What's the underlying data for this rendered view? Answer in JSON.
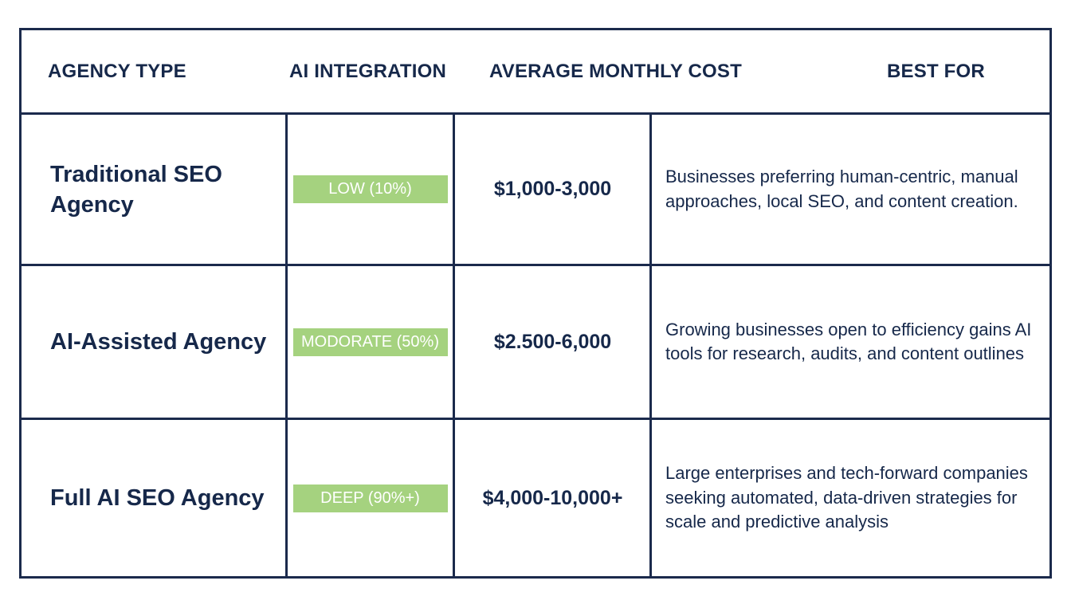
{
  "headers": {
    "agency_type": "AGENCY TYPE",
    "ai_integration": "AI INTEGRATION",
    "average_monthly_cost": "AVERAGE MONTHLY COST",
    "best_for": "BEST FOR"
  },
  "rows": [
    {
      "agency_type": "Traditional SEO Agency",
      "ai_integration": "LOW (10%)",
      "average_monthly_cost": "$1,000-3,000",
      "best_for": "Businesses preferring human-centric, manual approaches, local SEO, and content creation."
    },
    {
      "agency_type": "AI-Assisted Agency",
      "ai_integration": "MODORATE (50%)",
      "average_monthly_cost": "$2.500-6,000",
      "best_for": "Growing businesses open to efficiency gains AI tools for research, audits, and content outlines"
    },
    {
      "agency_type": "Full AI SEO Agency",
      "ai_integration": "DEEP (90%+)",
      "average_monthly_cost": "$4,000-10,000+",
      "best_for": "Large enterprises and tech-forward companies seeking automated, data-driven strategies for scale and predictive analysis"
    }
  ],
  "colors": {
    "border": "#1b2a4c",
    "text": "#16284a",
    "badge": "#a5d27f"
  }
}
